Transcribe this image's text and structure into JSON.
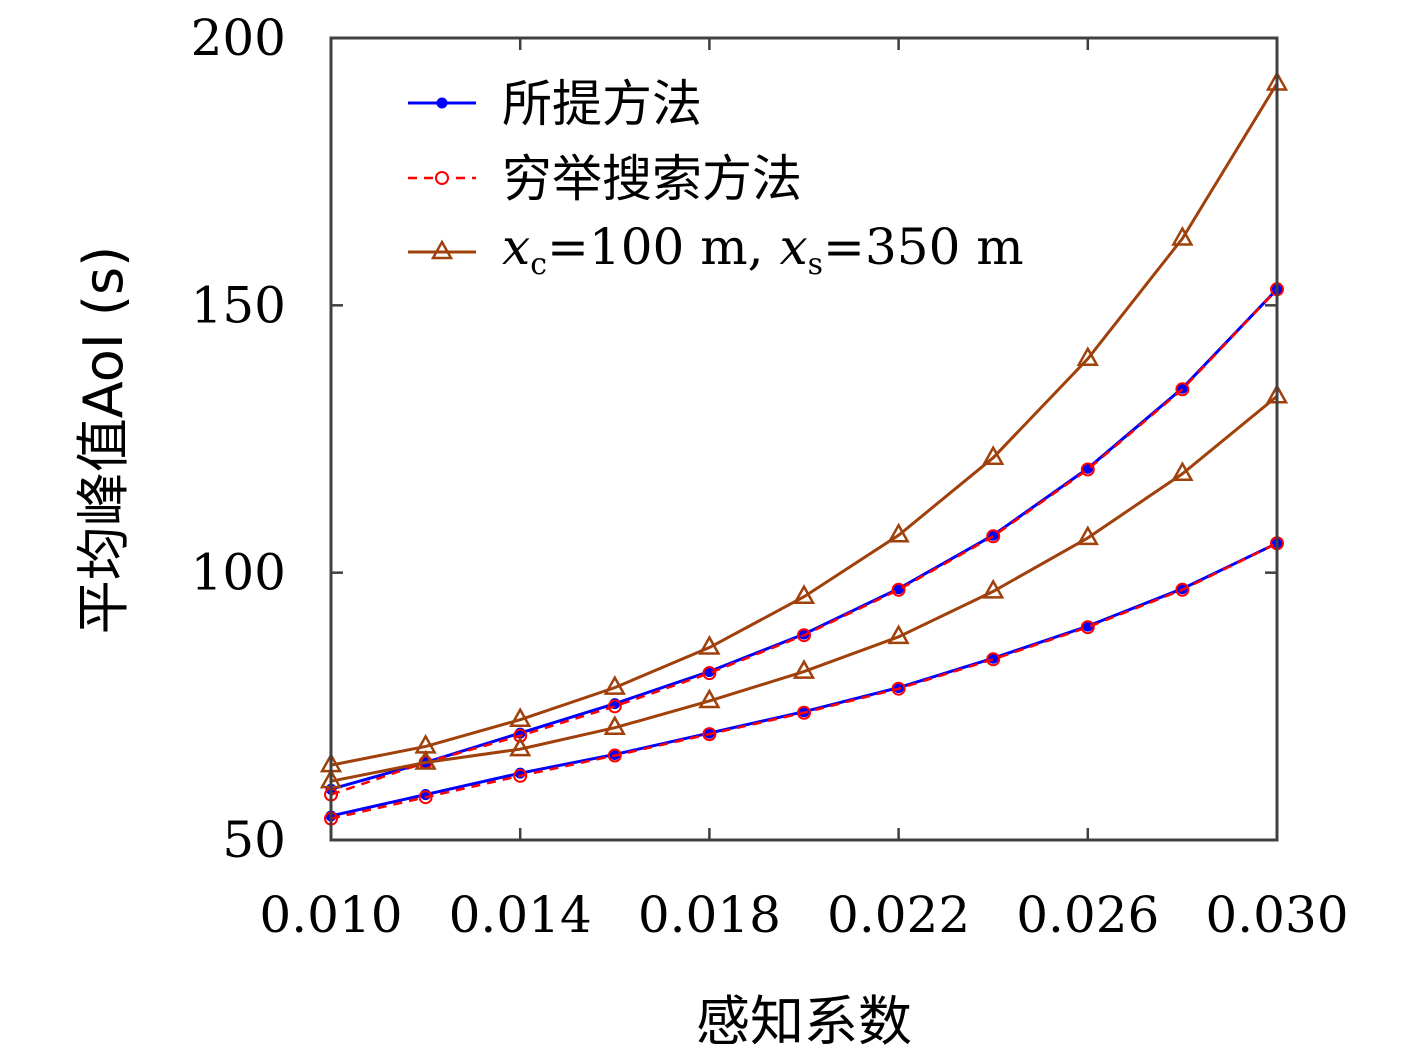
{
  "chart_data": {
    "type": "line",
    "title": "",
    "xlabel": "感知系数",
    "ylabel": "平均峰值AoI (s)",
    "xlim": [
      0.01,
      0.03
    ],
    "ylim": [
      50,
      200
    ],
    "xticks": [
      "0.010",
      "0.014",
      "0.018",
      "0.022",
      "0.026",
      "0.030"
    ],
    "yticks": [
      "50",
      "100",
      "150",
      "200"
    ],
    "x": [
      0.01,
      0.012,
      0.014,
      0.016,
      0.018,
      0.02,
      0.022,
      0.024,
      0.026,
      0.028,
      0.03
    ],
    "grid": false,
    "legend_position": "top-left",
    "legend": {
      "proposed": "所提方法",
      "exhaustive": "穷举搜索方法",
      "fixed_prefix": "x",
      "fixed_sub_c": "c",
      "fixed_mid": "=100 m, ",
      "fixed_sub_s": "s",
      "fixed_suffix": "=350 m"
    },
    "colors": {
      "proposed": "#0000ff",
      "exhaustive": "#ff0000",
      "fixed": "#a0400a",
      "axes": "#404040"
    },
    "series": [
      {
        "key": "proposed",
        "group": "upper",
        "values": [
          59.5,
          64.5,
          70,
          75.5,
          81.5,
          88.5,
          97,
          107,
          119.5,
          134.5,
          153
        ]
      },
      {
        "key": "exhaustive",
        "group": "upper",
        "values": [
          58.5,
          64.5,
          69.5,
          75,
          81.2,
          88.3,
          96.8,
          106.8,
          119.3,
          134.3,
          153
        ]
      },
      {
        "key": "proposed",
        "group": "lower",
        "values": [
          54.5,
          58.5,
          62.5,
          66,
          70,
          74,
          78.5,
          84,
          90,
          97,
          105.5
        ]
      },
      {
        "key": "exhaustive",
        "group": "lower",
        "values": [
          54,
          58,
          62,
          65.8,
          69.8,
          73.8,
          78.3,
          83.8,
          89.8,
          96.8,
          105.5
        ]
      },
      {
        "key": "fixed",
        "group": "upper",
        "values": [
          64,
          67.5,
          72.5,
          78.5,
          86,
          95.5,
          107,
          121.5,
          140,
          162.5,
          191.5
        ]
      },
      {
        "key": "fixed",
        "group": "lower",
        "values": [
          61,
          64.5,
          67,
          71,
          76,
          81.5,
          88,
          96.5,
          106.5,
          118.5,
          133
        ]
      }
    ]
  }
}
